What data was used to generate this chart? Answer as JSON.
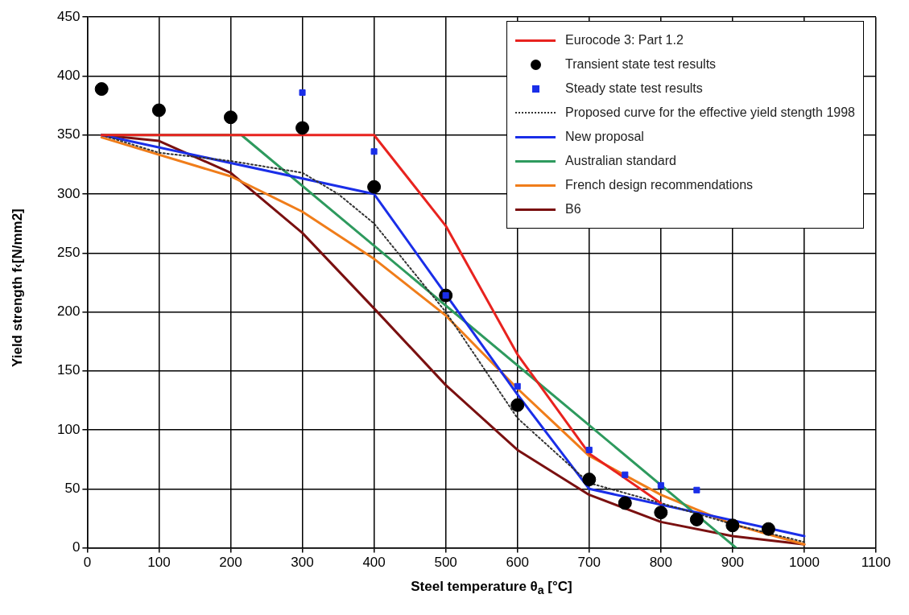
{
  "chart_data": {
    "type": "line",
    "xlabel": "Steel temperature θ$_{a}$ [°C]",
    "ylabel": "Yield strength f‹[N/mm2]",
    "xlim": [
      0,
      1100
    ],
    "xticks": [
      0,
      100,
      200,
      300,
      400,
      500,
      600,
      700,
      800,
      900,
      1000,
      1100
    ],
    "ylim": [
      0,
      450
    ],
    "yticks": [
      0,
      50,
      100,
      150,
      200,
      250,
      300,
      350,
      400,
      450
    ],
    "grid": true,
    "legend": "top right",
    "series": [
      {
        "name": "Eurocode 3: Part 1.2",
        "color": "#e8231f",
        "marker": "none",
        "line_style": "solid",
        "x": [
          20,
          400,
          500,
          600,
          700,
          800
        ],
        "values": [
          350,
          350,
          273,
          164,
          80,
          38
        ]
      },
      {
        "name": "Transient state test results",
        "type": "scatter",
        "color": "#000000",
        "marker": "circle",
        "x": [
          20,
          100,
          200,
          300,
          400,
          500,
          600,
          700,
          750,
          800,
          850,
          900,
          950
        ],
        "values": [
          389,
          371,
          365,
          356,
          306,
          214,
          121,
          58,
          38,
          30,
          24,
          19,
          16
        ]
      },
      {
        "name": "Steady state test results",
        "type": "scatter",
        "color": "#1a2ee8",
        "marker": "square",
        "x": [
          300,
          400,
          500,
          600,
          700,
          750,
          800,
          850
        ],
        "values": [
          386,
          336,
          214,
          137,
          83,
          62,
          53,
          49
        ]
      },
      {
        "name": "Proposed curve for the effective yield stength 1998",
        "color": "#333333",
        "marker": "none",
        "line_style": "dotted",
        "x": [
          20,
          100,
          200,
          300,
          350,
          400,
          500,
          600,
          700,
          800,
          900,
          1000
        ],
        "values": [
          350,
          335,
          328,
          318,
          300,
          275,
          200,
          110,
          55,
          38,
          20,
          5
        ]
      },
      {
        "name": "New proposal",
        "color": "#1a2ee8",
        "marker": "none",
        "line_style": "solid",
        "x": [
          20,
          400,
          500,
          600,
          700,
          1000
        ],
        "values": [
          350,
          300,
          215,
          130,
          50,
          10
        ]
      },
      {
        "name": "Australian standard",
        "color": "#2e9a5e",
        "marker": "none",
        "line_style": "solid",
        "x": [
          20,
          215,
          905
        ],
        "values": [
          350,
          350,
          0
        ]
      },
      {
        "name": "French design recommendations",
        "color": "#f07d1a",
        "marker": "none",
        "line_style": "solid",
        "x": [
          20,
          200,
          300,
          400,
          500,
          600,
          700,
          800,
          900,
          1000
        ],
        "values": [
          348,
          315,
          285,
          245,
          197,
          135,
          78,
          45,
          20,
          3
        ]
      },
      {
        "name": "B6",
        "color": "#7a1010",
        "marker": "none",
        "line_style": "solid",
        "x": [
          20,
          100,
          200,
          300,
          400,
          500,
          600,
          700,
          800,
          900,
          1000
        ],
        "values": [
          350,
          345,
          318,
          267,
          203,
          138,
          83,
          45,
          22,
          10,
          3
        ]
      }
    ]
  }
}
